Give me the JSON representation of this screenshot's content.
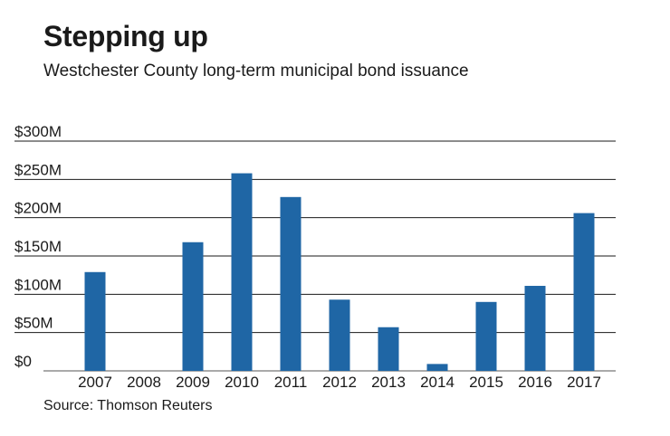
{
  "title": "Stepping up",
  "subtitle": "Westchester County long-term municipal bond issuance",
  "source": "Source: Thomson Reuters",
  "colors": {
    "bar": "#1f66a5",
    "grid": "#1a1a1a",
    "text": "#1a1a1a"
  },
  "chart_data": {
    "type": "bar",
    "title": "Stepping up",
    "subtitle": "Westchester County long-term municipal bond issuance",
    "xlabel": "",
    "ylabel": "",
    "categories": [
      "2007",
      "2008",
      "2009",
      "2010",
      "2011",
      "2012",
      "2013",
      "2014",
      "2015",
      "2016",
      "2017"
    ],
    "values": [
      129,
      0,
      168,
      258,
      227,
      93,
      57,
      9,
      90,
      111,
      206
    ],
    "unit": "$M",
    "ylim": [
      0,
      300
    ],
    "yticks": [
      0,
      50,
      100,
      150,
      200,
      250,
      300
    ],
    "ytick_labels": [
      "$0",
      "$50M",
      "$100M",
      "$150M",
      "$200M",
      "$250M",
      "$300M"
    ],
    "grid": true,
    "legend": "none"
  }
}
